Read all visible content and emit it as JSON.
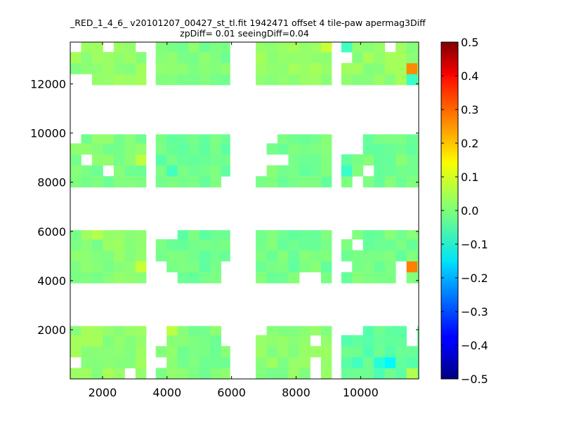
{
  "chart_data": {
    "type": "heatmap",
    "title": "_RED_1_4_6_ v20101207_00427_st_tl.fit 1942471 offset 4 tile-paw apermag3Diff",
    "subtitle": "zpDiff= 0.01 seeingDiff=0.04",
    "xlabel": "",
    "ylabel": "",
    "xlim": [
      1000,
      11800
    ],
    "ylim": [
      0,
      13700
    ],
    "xticks": [
      2000,
      4000,
      6000,
      8000,
      10000
    ],
    "yticks": [
      2000,
      4000,
      6000,
      8000,
      10000,
      12000
    ],
    "colorbar": {
      "colormap": "jet",
      "vmin": -0.5,
      "vmax": 0.5,
      "ticks": [
        0.5,
        0.4,
        0.3,
        0.2,
        0.1,
        0.0,
        -0.1,
        -0.2,
        -0.3,
        -0.4,
        -0.5
      ],
      "tick_labels": [
        "0.5",
        "0.4",
        "0.3",
        "0.2",
        "0.1",
        "0.0",
        "−0.1",
        "−0.2",
        "−0.3",
        "−0.4",
        "−0.5"
      ]
    },
    "grid": false,
    "cell_size": {
      "dx": 337,
      "dy": 445
    },
    "detector_blocks": [
      {
        "x": [
          1000,
          3350
        ],
        "y": [
          11960,
          13700
        ],
        "value": 0.02
      },
      {
        "x": [
          3650,
          5950
        ],
        "y": [
          11960,
          13700
        ],
        "value": 0.0
      },
      {
        "x": [
          6750,
          9100
        ],
        "y": [
          11960,
          13700
        ],
        "value": 0.02
      },
      {
        "x": [
          9400,
          11800
        ],
        "y": [
          11960,
          13700
        ],
        "value": 0.02
      },
      {
        "x": [
          1000,
          3350
        ],
        "y": [
          7800,
          9950
        ],
        "value": 0.0
      },
      {
        "x": [
          3650,
          5950
        ],
        "y": [
          7800,
          9950
        ],
        "value": -0.02
      },
      {
        "x": [
          6750,
          9100
        ],
        "y": [
          7800,
          9950
        ],
        "value": -0.01
      },
      {
        "x": [
          9400,
          11800
        ],
        "y": [
          7800,
          9950
        ],
        "value": -0.01
      },
      {
        "x": [
          1000,
          3350
        ],
        "y": [
          3900,
          6050
        ],
        "value": 0.01
      },
      {
        "x": [
          3650,
          5950
        ],
        "y": [
          3900,
          6050
        ],
        "value": -0.02
      },
      {
        "x": [
          6750,
          9100
        ],
        "y": [
          3900,
          6050
        ],
        "value": -0.01
      },
      {
        "x": [
          9400,
          11800
        ],
        "y": [
          3900,
          6050
        ],
        "value": -0.01
      },
      {
        "x": [
          1000,
          3350
        ],
        "y": [
          0,
          2150
        ],
        "value": 0.02
      },
      {
        "x": [
          3650,
          5950
        ],
        "y": [
          0,
          2150
        ],
        "value": 0.0
      },
      {
        "x": [
          6750,
          9100
        ],
        "y": [
          0,
          2150
        ],
        "value": 0.01
      },
      {
        "x": [
          9400,
          11800
        ],
        "y": [
          0,
          2150
        ],
        "value": -0.03
      }
    ],
    "missing_cells": [
      [
        1000,
        13250
      ],
      [
        2000,
        13250
      ],
      [
        3000,
        13250
      ],
      [
        1000,
        11960
      ],
      [
        1337,
        11960
      ],
      [
        3000,
        13250
      ],
      [
        9400,
        12810
      ],
      [
        10750,
        13250
      ],
      [
        1337,
        8700
      ],
      [
        2000,
        8250
      ],
      [
        1000,
        9500
      ],
      [
        5950,
        8700
      ],
      [
        5650,
        7800
      ],
      [
        6750,
        9500
      ],
      [
        7100,
        9500
      ],
      [
        6750,
        9050
      ],
      [
        6750,
        8700
      ],
      [
        7100,
        8700
      ],
      [
        7450,
        8700
      ],
      [
        6750,
        8250
      ],
      [
        9400,
        9500
      ],
      [
        9750,
        9500
      ],
      [
        9400,
        9050
      ],
      [
        9750,
        9050
      ],
      [
        10100,
        8250
      ],
      [
        9750,
        7800
      ],
      [
        3650,
        5600
      ],
      [
        4000,
        5600
      ],
      [
        3650,
        4350
      ],
      [
        3650,
        3900
      ],
      [
        4000,
        3900
      ],
      [
        5650,
        4350
      ],
      [
        5650,
        3900
      ],
      [
        9400,
        5600
      ],
      [
        9750,
        5150
      ],
      [
        9400,
        4350
      ],
      [
        11100,
        4350
      ],
      [
        11100,
        3900
      ],
      [
        8100,
        3900
      ],
      [
        8450,
        3900
      ],
      [
        3650,
        1710
      ],
      [
        3650,
        1270
      ],
      [
        5650,
        1710
      ],
      [
        5650,
        1270
      ],
      [
        3650,
        440
      ],
      [
        6750,
        1710
      ],
      [
        8450,
        1270
      ],
      [
        8450,
        440
      ],
      [
        8450,
        0
      ],
      [
        9400,
        1710
      ],
      [
        9750,
        1710
      ],
      [
        11450,
        1710
      ],
      [
        11450,
        1270
      ],
      [
        1000,
        440
      ],
      [
        2700,
        0
      ]
    ],
    "notable_cells": [
      {
        "x": 8800,
        "y": 13250,
        "value": 0.07
      },
      {
        "x": 11450,
        "y": 12200,
        "value": 0.24
      },
      {
        "x": 11450,
        "y": 11960,
        "value": -0.07
      },
      {
        "x": 9400,
        "y": 13250,
        "value": -0.06
      },
      {
        "x": 5950,
        "y": 8250,
        "value": 0.11
      },
      {
        "x": 3000,
        "y": 8700,
        "value": 0.06
      },
      {
        "x": 9400,
        "y": 8250,
        "value": -0.07
      },
      {
        "x": 4000,
        "y": 8250,
        "value": -0.06
      },
      {
        "x": 1700,
        "y": 5600,
        "value": 0.05
      },
      {
        "x": 11450,
        "y": 4350,
        "value": 0.25
      },
      {
        "x": 9400,
        "y": 5600,
        "value": -0.06
      },
      {
        "x": 3000,
        "y": 4350,
        "value": 0.07
      },
      {
        "x": 10750,
        "y": 440,
        "value": -0.13
      },
      {
        "x": 10400,
        "y": 440,
        "value": -0.09
      },
      {
        "x": 9750,
        "y": 440,
        "value": -0.06
      },
      {
        "x": 4000,
        "y": 1710,
        "value": 0.06
      },
      {
        "x": 11450,
        "y": 1710,
        "value": -0.07
      },
      {
        "x": 11450,
        "y": 0,
        "value": 0.05
      }
    ]
  }
}
